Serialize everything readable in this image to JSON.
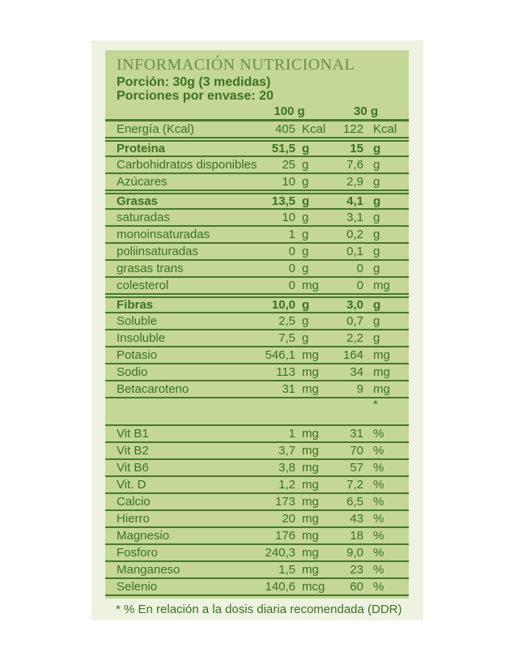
{
  "label": {
    "title": "INFORMACIÓN NUTRICIONAL",
    "serving_size": "Porción: 30g (3 medidas)",
    "servings_per_container": "Porciones por envase: 20",
    "footnote": "* % En relación a la dosis diaria recomendada (DDR)"
  },
  "table": {
    "col_headers": [
      "100 g",
      "30 g"
    ],
    "rows": [
      {
        "label": "Energía (Kcal)",
        "v1": "405",
        "u1": "Kcal",
        "v2": "122",
        "u2": "Kcal"
      },
      {
        "label": "Proteina",
        "v1": "51,5",
        "u1": "g",
        "v2": "15",
        "u2": "g",
        "section": true
      },
      {
        "label": "Carbohidratos disponibles",
        "v1": "25",
        "u1": "g",
        "v2": "7,6",
        "u2": "g"
      },
      {
        "label": "Azúcares",
        "v1": "10",
        "u1": "g",
        "v2": "2,9",
        "u2": "g"
      },
      {
        "label": "Grasas",
        "v1": "13,5",
        "u1": "g",
        "v2": "4,1",
        "u2": "g",
        "section": true
      },
      {
        "label": "saturadas",
        "v1": "10",
        "u1": "g",
        "v2": "3,1",
        "u2": "g"
      },
      {
        "label": "monoinsaturadas",
        "v1": "1",
        "u1": "g",
        "v2": "0,2",
        "u2": "g"
      },
      {
        "label": "poliinsaturadas",
        "v1": "0",
        "u1": "g",
        "v2": "0,1",
        "u2": "g"
      },
      {
        "label": "grasas trans",
        "v1": "0",
        "u1": "g",
        "v2": "0",
        "u2": "g"
      },
      {
        "label": "colesterol",
        "v1": "0",
        "u1": "mg",
        "v2": "0",
        "u2": "mg"
      },
      {
        "label": "Fibras",
        "v1": "10,0",
        "u1": "g",
        "v2": "3,0",
        "u2": "g",
        "section": true
      },
      {
        "label": "Soluble",
        "v1": "2,5",
        "u1": "g",
        "v2": "0,7",
        "u2": "g"
      },
      {
        "label": "Insoluble",
        "v1": "7,5",
        "u1": "g",
        "v2": "2,2",
        "u2": "g"
      },
      {
        "label": "Potasio",
        "v1": "546,1",
        "u1": "mg",
        "v2": "164",
        "u2": "mg"
      },
      {
        "label": "Sodio",
        "v1": "113",
        "u1": "mg",
        "v2": "34",
        "u2": "mg"
      },
      {
        "label": "Betacaroteno",
        "v1": "31",
        "u1": "mg",
        "v2": "9",
        "u2": "mg"
      },
      {
        "label": "",
        "v1": "",
        "u1": "",
        "v2": "",
        "u2": "*",
        "star": true
      },
      {
        "label": "Vit B1",
        "v1": "1",
        "u1": "mg",
        "v2": "31",
        "u2": "%"
      },
      {
        "label": "Vit B2",
        "v1": "3,7",
        "u1": "mg",
        "v2": "70",
        "u2": "%"
      },
      {
        "label": "Vit B6",
        "v1": "3,8",
        "u1": "mg",
        "v2": "57",
        "u2": "%"
      },
      {
        "label": "Vit. D",
        "v1": "1,2",
        "u1": "mg",
        "v2": "7,2",
        "u2": "%"
      },
      {
        "label": "Calcio",
        "v1": "173",
        "u1": "mg",
        "v2": "6,5",
        "u2": "%"
      },
      {
        "label": "Hierro",
        "v1": "20",
        "u1": "mg",
        "v2": "43",
        "u2": "%"
      },
      {
        "label": "Magnesio",
        "v1": "176",
        "u1": "mg",
        "v2": "18",
        "u2": "%"
      },
      {
        "label": "Fosforo",
        "v1": "240,3",
        "u1": "mg",
        "v2": "9,0",
        "u2": "%"
      },
      {
        "label": "Manganeso",
        "v1": "1,5",
        "u1": "mg",
        "v2": "23",
        "u2": "%"
      },
      {
        "label": "Selenio",
        "v1": "140,6",
        "u1": "mcg",
        "v2": "60",
        "u2": "%"
      }
    ]
  },
  "colors": {
    "panel_pale": "#eef3e1",
    "panel_green": "#c4d795",
    "text_green": "#3b7322",
    "line_green": "#45782c",
    "title_green": "#679247"
  }
}
